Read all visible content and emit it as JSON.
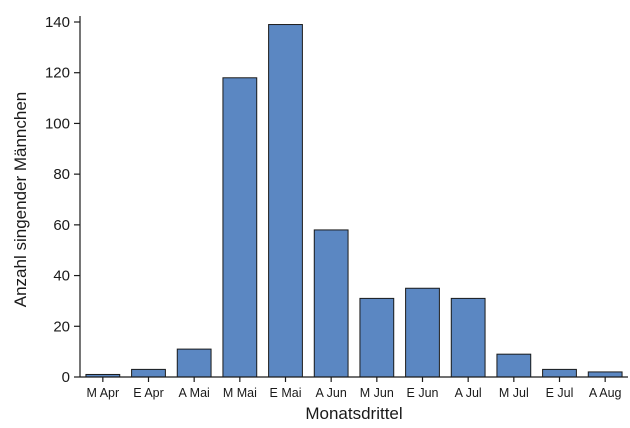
{
  "chart_data": {
    "type": "bar",
    "title": "",
    "xlabel": "Monatsdrittel",
    "ylabel": "Anzahl singender Männchen",
    "categories": [
      "M Apr",
      "E Apr",
      "A Mai",
      "M Mai",
      "E Mai",
      "A Jun",
      "M Jun",
      "E Jun",
      "A Jul",
      "M Jul",
      "E Jul",
      "A Aug"
    ],
    "values": [
      1,
      3,
      11,
      118,
      139,
      58,
      31,
      35,
      31,
      9,
      3,
      2
    ],
    "ylim": [
      0,
      140
    ],
    "yticks": [
      "0",
      "20",
      "40",
      "60",
      "80",
      "100",
      "120",
      "140"
    ],
    "grid": false,
    "bar_color": "#5b87c2",
    "bar_edge_color": "#1a1a1a"
  }
}
